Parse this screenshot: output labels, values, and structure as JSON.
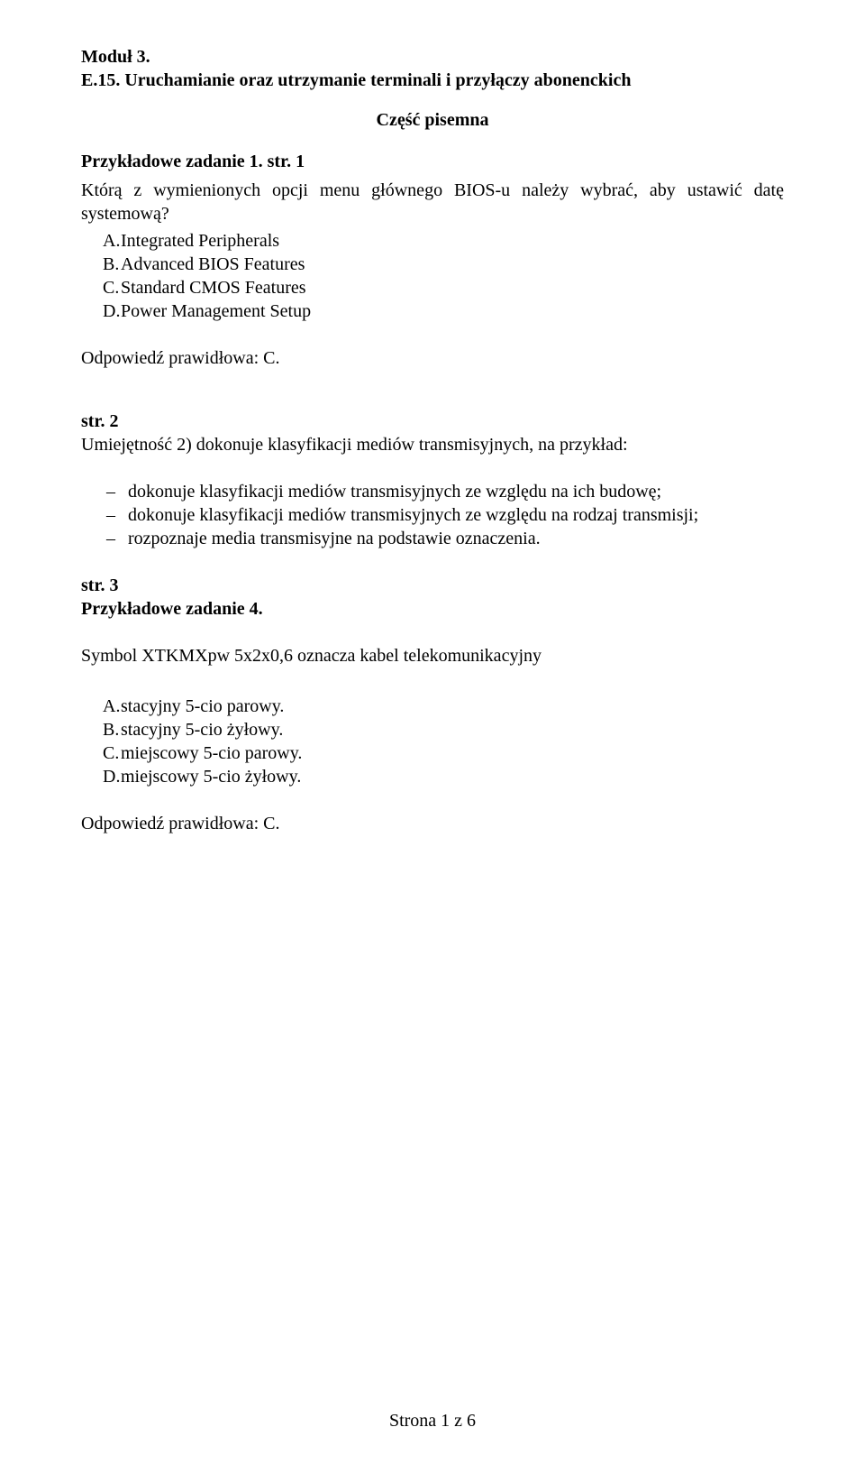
{
  "module": {
    "line1": "Moduł 3.",
    "line2": "E.15. Uruchamianie oraz utrzymanie terminali i przyłączy abonenckich"
  },
  "section_label": "Część pisemna",
  "q1": {
    "heading": "Przykładowe zadanie 1. str. 1",
    "intro": "Którą z wymienionych opcji menu głównego BIOS-u należy wybrać, aby ustawić datę systemową?",
    "options": {
      "a": "Integrated Peripherals",
      "b": "Advanced BIOS Features",
      "c": "Standard CMOS Features",
      "d": "Power Management Setup"
    },
    "answer": "Odpowiedź prawidłowa: C."
  },
  "skill2": {
    "heading": "str. 2",
    "intro": "Umiejętność 2) dokonuje klasyfikacji mediów transmisyjnych, na przykład:",
    "items": [
      "dokonuje klasyfikacji mediów transmisyjnych ze względu na ich budowę;",
      "dokonuje klasyfikacji mediów transmisyjnych ze względu na rodzaj transmisji;",
      "rozpoznaje media transmisyjne na podstawie oznaczenia."
    ]
  },
  "q4": {
    "heading_line1": "str. 3",
    "heading_line2": "Przykładowe zadanie 4.",
    "intro": "Symbol XTKMXpw 5x2x0,6 oznacza kabel telekomunikacyjny",
    "options": {
      "a": "stacyjny 5-cio parowy.",
      "b": "stacyjny 5-cio żyłowy.",
      "c": "miejscowy 5-cio parowy.",
      "d": "miejscowy 5-cio żyłowy."
    },
    "answer": "Odpowiedź prawidłowa: C."
  },
  "footer": "Strona 1 z 6",
  "letter_prefix": {
    "a": "A.",
    "b": "B.",
    "c": "C.",
    "d": "D."
  }
}
